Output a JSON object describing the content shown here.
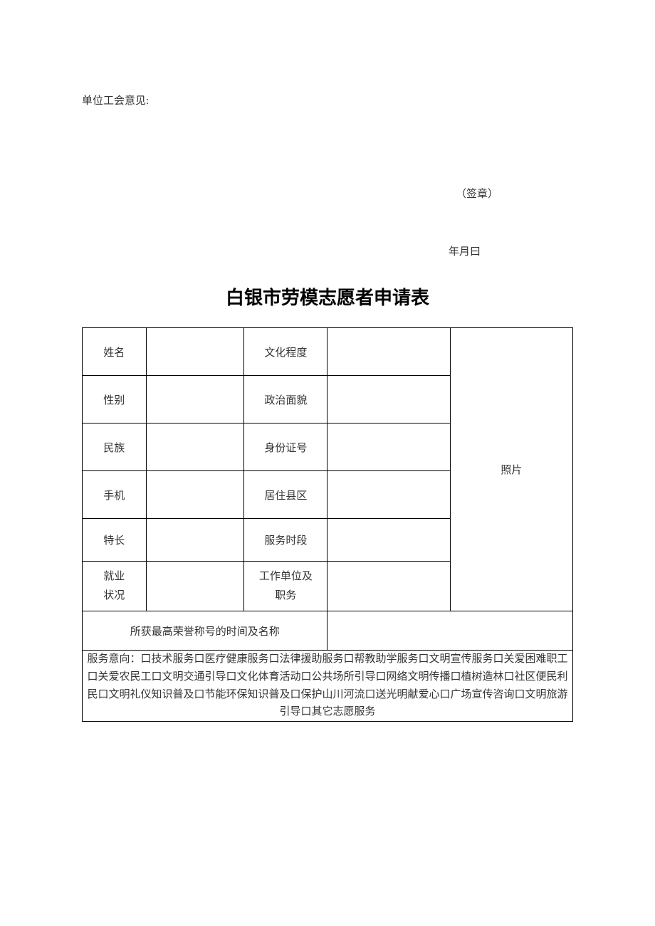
{
  "opinion": {
    "label": "单位工会意见:",
    "signature": "（签章）",
    "date": "年月曰"
  },
  "form": {
    "title": "白银市劳模志愿者申请表",
    "rows": {
      "name_label": "姓名",
      "name_value": "",
      "edu_label": "文化程度",
      "edu_value": "",
      "gender_label": "性别",
      "gender_value": "",
      "political_label": "政治面貌",
      "political_value": "",
      "ethnic_label": "民族",
      "ethnic_value": "",
      "id_label": "身份证号",
      "id_value": "",
      "phone_label": "手机",
      "phone_value": "",
      "district_label": "居住县区",
      "district_value": "",
      "specialty_label": "特长",
      "specialty_value": "",
      "time_label": "服务时段",
      "time_value": "",
      "employment_label_l1": "就业",
      "employment_label_l2": "状况",
      "employment_value": "",
      "workunit_label_l1": "工作单位及",
      "workunit_label_l2": "职务",
      "workunit_value": "",
      "honor_label": "所获最高荣誉称号的时间及名称",
      "honor_value": "",
      "photo_label": "照片"
    },
    "service_intent": {
      "prefix": "服务意向：",
      "checkbox_char": "口",
      "options": [
        "技术服务",
        "医疗健康服务",
        "法律援助服务",
        "帮教助学服务",
        "文明宣传服务",
        "关爱困难职工",
        "关爱农民工",
        "文明交通引导",
        "文化体育活动",
        "公共场所引导",
        "网络文明传播",
        "植树造林",
        "社区便民利民",
        "文明礼仪知识普及",
        "节能环保知识普及",
        "保护山川河流",
        "送光明献爱心",
        "广场宣传咨询",
        "文明旅游引导",
        "其它志愿服务"
      ]
    }
  },
  "styling": {
    "page_bg": "#ffffff",
    "text_color": "#333333",
    "title_color": "#000000",
    "border_color": "#000000",
    "body_fontsize": 15,
    "title_fontsize": 26
  }
}
